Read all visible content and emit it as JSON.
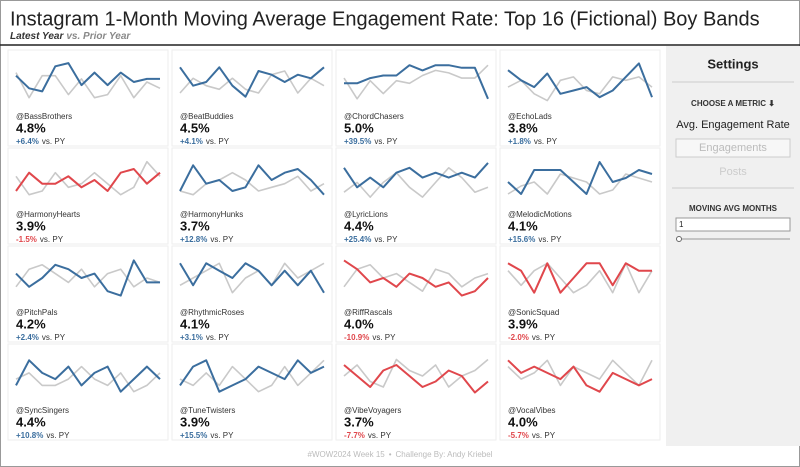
{
  "header": {
    "title": "Instagram 1-Month Moving Average Engagement Rate: Top 16 (Fictional) Boy Bands",
    "subtitle_latest": "Latest Year",
    "subtitle_prior": "vs. Prior Year"
  },
  "settings": {
    "title": "Settings",
    "metric_label": "CHOOSE A METRIC ⬇",
    "options": [
      "Avg. Engagement Rate",
      "Engagements",
      "Posts"
    ],
    "months_label": "MOVING AVG MONTHS",
    "months_value": "1"
  },
  "footer": {
    "week": "#WOW2024 Week 15",
    "credit": "Challenge By: Andy Kriebel"
  },
  "chart_data": [
    {
      "type": "line",
      "name": "@BassBrothers",
      "metric": "4.8%",
      "change": "+6.4%",
      "vs_label": "vs. PY",
      "ylim": [
        4.0,
        5.4
      ],
      "series": [
        {
          "color": "#3b6e9e",
          "values": [
            4.9,
            4.5,
            4.4,
            5.2,
            5.3,
            4.6,
            5.0,
            4.6,
            5.0,
            4.7,
            4.8,
            4.8
          ]
        },
        {
          "color": "#c9c9c9",
          "values": [
            5.0,
            4.2,
            4.9,
            4.9,
            4.3,
            4.8,
            4.2,
            4.3,
            4.9,
            4.2,
            4.7,
            4.5
          ]
        }
      ]
    },
    {
      "type": "line",
      "name": "@BeatBuddies",
      "metric": "4.5%",
      "change": "+4.1%",
      "vs_label": "vs. PY",
      "ylim": [
        3.9,
        5.1
      ],
      "series": [
        {
          "color": "#3b6e9e",
          "values": [
            4.9,
            4.4,
            4.5,
            4.9,
            4.4,
            4.1,
            4.8,
            4.7,
            4.5,
            4.7,
            4.6,
            4.9
          ]
        },
        {
          "color": "#c9c9c9",
          "values": [
            4.2,
            4.6,
            4.4,
            4.3,
            4.6,
            4.3,
            4.2,
            4.7,
            4.8,
            4.2,
            4.6,
            4.4
          ]
        }
      ]
    },
    {
      "type": "line",
      "name": "@ChordChasers",
      "metric": "5.0%",
      "change": "+39.5%",
      "vs_label": "vs. PY",
      "ylim": [
        3.8,
        5.5
      ],
      "series": [
        {
          "color": "#3b6e9e",
          "values": [
            4.6,
            4.6,
            4.8,
            4.9,
            4.9,
            5.3,
            5.1,
            5.3,
            5.3,
            5.2,
            5.2,
            4.0
          ]
        },
        {
          "color": "#c9c9c9",
          "values": [
            4.8,
            4.0,
            4.7,
            4.2,
            4.7,
            4.6,
            4.9,
            5.1,
            5.0,
            4.8,
            4.8,
            5.3
          ]
        }
      ]
    },
    {
      "type": "line",
      "name": "@EchoLads",
      "metric": "3.8%",
      "change": "+1.8%",
      "vs_label": "vs. PY",
      "ylim": [
        3.1,
        4.4
      ],
      "series": [
        {
          "color": "#3b6e9e",
          "values": [
            4.1,
            3.8,
            3.6,
            4.0,
            3.4,
            3.5,
            3.6,
            3.3,
            3.5,
            3.9,
            4.3,
            3.3
          ]
        },
        {
          "color": "#c9c9c9",
          "values": [
            3.6,
            3.8,
            3.4,
            3.2,
            3.8,
            3.9,
            3.5,
            3.4,
            3.9,
            3.8,
            3.9,
            3.6
          ]
        }
      ]
    },
    {
      "type": "line",
      "name": "@HarmonyHearts",
      "metric": "3.9%",
      "change": "-1.5%",
      "vs_label": "vs. PY",
      "ylim": [
        3.3,
        4.5
      ],
      "series": [
        {
          "color": "#e0474c",
          "values": [
            3.6,
            4.1,
            3.8,
            3.8,
            4.0,
            3.7,
            3.9,
            3.6,
            4.1,
            4.2,
            3.8,
            4.1
          ]
        },
        {
          "color": "#c9c9c9",
          "values": [
            4.0,
            3.5,
            3.6,
            4.1,
            3.7,
            3.8,
            4.1,
            3.8,
            3.5,
            3.7,
            4.4,
            4.0
          ]
        }
      ]
    },
    {
      "type": "line",
      "name": "@HarmonyHunks",
      "metric": "3.7%",
      "change": "+12.8%",
      "vs_label": "vs. PY",
      "ylim": [
        3.3,
        4.5
      ],
      "series": [
        {
          "color": "#3b6e9e",
          "values": [
            3.6,
            4.3,
            3.8,
            3.9,
            3.6,
            3.7,
            4.3,
            3.9,
            4.1,
            4.2,
            3.9,
            3.5
          ]
        },
        {
          "color": "#c9c9c9",
          "values": [
            3.6,
            3.5,
            3.8,
            3.9,
            4.1,
            3.9,
            3.6,
            3.7,
            3.8,
            4.0,
            3.6,
            3.8
          ]
        }
      ]
    },
    {
      "type": "line",
      "name": "@LyricLions",
      "metric": "4.4%",
      "change": "+25.4%",
      "vs_label": "vs. PY",
      "ylim": [
        3.9,
        4.8
      ],
      "series": [
        {
          "color": "#3b6e9e",
          "values": [
            4.6,
            4.2,
            4.4,
            4.2,
            4.5,
            4.6,
            4.4,
            4.5,
            4.4,
            4.5,
            4.4,
            4.7
          ]
        },
        {
          "color": "#c9c9c9",
          "values": [
            4.1,
            4.3,
            4.0,
            4.3,
            4.5,
            4.2,
            4.0,
            4.3,
            4.6,
            4.4,
            4.1,
            4.2
          ]
        }
      ]
    },
    {
      "type": "line",
      "name": "@MelodicMotions",
      "metric": "4.1%",
      "change": "+15.6%",
      "vs_label": "vs. PY",
      "ylim": [
        3.8,
        4.9
      ],
      "series": [
        {
          "color": "#3b6e9e",
          "values": [
            4.3,
            4.0,
            4.6,
            4.6,
            4.6,
            4.3,
            4.0,
            4.8,
            4.3,
            4.4,
            4.6,
            4.5
          ]
        },
        {
          "color": "#c9c9c9",
          "values": [
            4.0,
            4.2,
            4.3,
            4.0,
            4.5,
            4.4,
            4.3,
            4.0,
            4.1,
            4.5,
            4.4,
            4.3
          ]
        }
      ]
    },
    {
      "type": "line",
      "name": "@PitchPals",
      "metric": "4.2%",
      "change": "+2.4%",
      "vs_label": "vs. PY",
      "ylim": [
        3.7,
        4.7
      ],
      "series": [
        {
          "color": "#3b6e9e",
          "values": [
            4.3,
            4.0,
            4.2,
            4.5,
            4.4,
            4.2,
            4.3,
            3.9,
            3.8,
            4.6,
            4.1,
            4.1
          ]
        },
        {
          "color": "#c9c9c9",
          "values": [
            4.0,
            4.4,
            4.5,
            4.3,
            4.1,
            4.4,
            4.0,
            4.3,
            4.4,
            4.0,
            4.2,
            4.1
          ]
        }
      ]
    },
    {
      "type": "line",
      "name": "@RhythmicRoses",
      "metric": "4.1%",
      "change": "+3.1%",
      "vs_label": "vs. PY",
      "ylim": [
        3.8,
        4.4
      ],
      "series": [
        {
          "color": "#3b6e9e",
          "values": [
            4.3,
            4.0,
            4.3,
            4.2,
            4.1,
            4.3,
            4.2,
            4.0,
            4.2,
            4.0,
            4.2,
            3.9
          ]
        },
        {
          "color": "#c9c9c9",
          "values": [
            4.0,
            4.1,
            4.2,
            4.3,
            3.9,
            4.1,
            4.2,
            4.0,
            4.3,
            4.1,
            4.2,
            4.3
          ]
        }
      ]
    },
    {
      "type": "line",
      "name": "@RiffRascals",
      "metric": "4.0%",
      "change": "-10.9%",
      "vs_label": "vs. PY",
      "ylim": [
        3.5,
        4.5
      ],
      "series": [
        {
          "color": "#e0474c",
          "values": [
            4.4,
            4.2,
            3.9,
            4.0,
            3.8,
            4.1,
            4.0,
            3.8,
            3.9,
            3.6,
            3.7,
            4.0
          ]
        },
        {
          "color": "#c9c9c9",
          "values": [
            3.8,
            4.2,
            4.3,
            4.0,
            4.1,
            3.9,
            3.7,
            4.2,
            4.1,
            3.8,
            4.0,
            4.1
          ]
        }
      ]
    },
    {
      "type": "line",
      "name": "@SonicSquad",
      "metric": "3.9%",
      "change": "-2.0%",
      "vs_label": "vs. PY",
      "ylim": [
        3.6,
        4.2
      ],
      "series": [
        {
          "color": "#e0474c",
          "values": [
            4.1,
            4.0,
            3.7,
            4.1,
            3.7,
            3.9,
            4.1,
            4.1,
            3.8,
            4.1,
            4.0,
            4.0
          ]
        },
        {
          "color": "#c9c9c9",
          "values": [
            4.0,
            3.8,
            4.0,
            4.1,
            3.9,
            3.7,
            3.8,
            4.0,
            3.7,
            4.1,
            3.7,
            4.0
          ]
        }
      ]
    },
    {
      "type": "line",
      "name": "@SyncSingers",
      "metric": "4.4%",
      "change": "+10.8%",
      "vs_label": "vs. PY",
      "ylim": [
        4.1,
        4.8
      ],
      "series": [
        {
          "color": "#3b6e9e",
          "values": [
            4.3,
            4.7,
            4.5,
            4.4,
            4.6,
            4.3,
            4.5,
            4.6,
            4.2,
            4.4,
            4.6,
            4.4
          ]
        },
        {
          "color": "#c9c9c9",
          "values": [
            4.4,
            4.5,
            4.3,
            4.3,
            4.4,
            4.6,
            4.4,
            4.3,
            4.5,
            4.2,
            4.3,
            4.5
          ]
        }
      ]
    },
    {
      "type": "line",
      "name": "@TuneTwisters",
      "metric": "3.9%",
      "change": "+15.5%",
      "vs_label": "vs. PY",
      "ylim": [
        3.5,
        4.2
      ],
      "series": [
        {
          "color": "#3b6e9e",
          "values": [
            3.7,
            4.0,
            4.1,
            3.6,
            3.7,
            3.8,
            4.0,
            3.9,
            3.8,
            4.1,
            3.9,
            4.0
          ]
        },
        {
          "color": "#c9c9c9",
          "values": [
            3.8,
            3.7,
            3.9,
            3.7,
            4.0,
            3.8,
            3.6,
            3.7,
            4.0,
            3.7,
            3.9,
            4.1
          ]
        }
      ]
    },
    {
      "type": "line",
      "name": "@VibeVoyagers",
      "metric": "3.7%",
      "change": "-7.7%",
      "vs_label": "vs. PY",
      "ylim": [
        3.2,
        4.0
      ],
      "series": [
        {
          "color": "#e0474c",
          "values": [
            3.8,
            3.6,
            3.4,
            3.7,
            3.8,
            3.6,
            3.4,
            3.5,
            3.7,
            3.6,
            3.3,
            3.5
          ]
        },
        {
          "color": "#c9c9c9",
          "values": [
            3.6,
            3.8,
            3.5,
            3.4,
            3.9,
            3.7,
            3.6,
            3.8,
            3.4,
            3.6,
            3.7,
            3.9
          ]
        }
      ]
    },
    {
      "type": "line",
      "name": "@VocalVibes",
      "metric": "4.0%",
      "change": "-5.7%",
      "vs_label": "vs. PY",
      "ylim": [
        3.6,
        4.3
      ],
      "series": [
        {
          "color": "#e0474c",
          "values": [
            4.2,
            4.0,
            4.1,
            4.0,
            3.9,
            4.1,
            3.8,
            3.7,
            4.0,
            3.9,
            3.8,
            3.9
          ]
        },
        {
          "color": "#c9c9c9",
          "values": [
            4.1,
            3.9,
            4.0,
            4.2,
            3.8,
            4.1,
            4.0,
            3.9,
            4.2,
            4.0,
            3.8,
            4.2
          ]
        }
      ]
    }
  ]
}
